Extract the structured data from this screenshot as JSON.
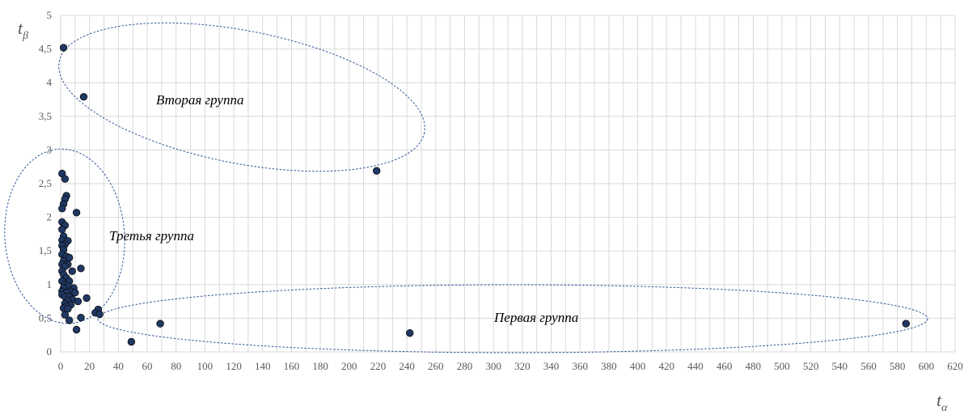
{
  "colors": {
    "marker": "#1f3864",
    "marker_edge": "#0d0d0d",
    "grid": "#d9d9d9",
    "ellipse": "#2f5597",
    "text": "#595959"
  },
  "chart_data": {
    "type": "scatter",
    "xlabel": {
      "main": "t",
      "sub": "α"
    },
    "ylabel": {
      "main": "t",
      "sub": "β"
    },
    "xlim": [
      0,
      620
    ],
    "ylim": [
      0,
      5
    ],
    "x_ticks": [
      0,
      10,
      20,
      30,
      40,
      50,
      60,
      70,
      80,
      90,
      100,
      110,
      120,
      130,
      140,
      150,
      160,
      170,
      180,
      190,
      200,
      210,
      220,
      230,
      240,
      250,
      260,
      270,
      280,
      290,
      300,
      310,
      320,
      330,
      340,
      350,
      360,
      370,
      380,
      390,
      400,
      410,
      420,
      430,
      440,
      450,
      460,
      470,
      480,
      490,
      500,
      510,
      520,
      530,
      540,
      550,
      560,
      570,
      580,
      590,
      600,
      610,
      620
    ],
    "x_tick_labels": [
      "0",
      "20",
      "40",
      "60",
      "80",
      "100",
      "120",
      "140",
      "160",
      "180",
      "200",
      "220",
      "240",
      "260",
      "280",
      "300",
      "320",
      "340",
      "360",
      "380",
      "400",
      "420",
      "440",
      "460",
      "480",
      "500",
      "520",
      "540",
      "560",
      "580",
      "600",
      "620"
    ],
    "y_ticks": [
      0,
      0.5,
      1,
      1.5,
      2,
      2.5,
      3,
      3.5,
      4,
      4.5,
      5
    ],
    "y_tick_labels": [
      "0",
      "0,5",
      "1",
      "1,5",
      "2",
      "2,5",
      "3",
      "3,5",
      "4",
      "4,5",
      "5"
    ],
    "grid": true,
    "legend": "none",
    "points": [
      {
        "x": 2,
        "y": 4.52
      },
      {
        "x": 16,
        "y": 3.79
      },
      {
        "x": 219,
        "y": 2.69
      },
      {
        "x": 1,
        "y": 2.65
      },
      {
        "x": 3,
        "y": 2.57
      },
      {
        "x": 4,
        "y": 2.32
      },
      {
        "x": 3,
        "y": 2.27
      },
      {
        "x": 2,
        "y": 2.2
      },
      {
        "x": 1,
        "y": 2.13
      },
      {
        "x": 11,
        "y": 2.07
      },
      {
        "x": 1,
        "y": 1.93
      },
      {
        "x": 3,
        "y": 1.88
      },
      {
        "x": 1,
        "y": 1.82
      },
      {
        "x": 2,
        "y": 1.72
      },
      {
        "x": 1,
        "y": 1.66
      },
      {
        "x": 5,
        "y": 1.65
      },
      {
        "x": 3,
        "y": 1.6
      },
      {
        "x": 1,
        "y": 1.58
      },
      {
        "x": 2,
        "y": 1.52
      },
      {
        "x": 1,
        "y": 1.45
      },
      {
        "x": 4,
        "y": 1.42
      },
      {
        "x": 6,
        "y": 1.4
      },
      {
        "x": 2,
        "y": 1.35
      },
      {
        "x": 1,
        "y": 1.3
      },
      {
        "x": 5,
        "y": 1.3
      },
      {
        "x": 3,
        "y": 1.27
      },
      {
        "x": 14,
        "y": 1.24
      },
      {
        "x": 1,
        "y": 1.2
      },
      {
        "x": 8,
        "y": 1.2
      },
      {
        "x": 2,
        "y": 1.15
      },
      {
        "x": 4,
        "y": 1.1
      },
      {
        "x": 1,
        "y": 1.05
      },
      {
        "x": 6,
        "y": 1.05
      },
      {
        "x": 3,
        "y": 1.0
      },
      {
        "x": 5,
        "y": 0.98
      },
      {
        "x": 2,
        "y": 0.95
      },
      {
        "x": 9,
        "y": 0.95
      },
      {
        "x": 1,
        "y": 0.9
      },
      {
        "x": 7,
        "y": 0.9
      },
      {
        "x": 4,
        "y": 0.88
      },
      {
        "x": 10,
        "y": 0.88
      },
      {
        "x": 1,
        "y": 0.85
      },
      {
        "x": 3,
        "y": 0.82
      },
      {
        "x": 6,
        "y": 0.82
      },
      {
        "x": 18,
        "y": 0.8
      },
      {
        "x": 8,
        "y": 0.78
      },
      {
        "x": 5,
        "y": 0.76
      },
      {
        "x": 12,
        "y": 0.75
      },
      {
        "x": 3,
        "y": 0.72
      },
      {
        "x": 7,
        "y": 0.7
      },
      {
        "x": 4,
        "y": 0.68
      },
      {
        "x": 2,
        "y": 0.65
      },
      {
        "x": 5,
        "y": 0.64
      },
      {
        "x": 26,
        "y": 0.63
      },
      {
        "x": 24,
        "y": 0.58
      },
      {
        "x": 27,
        "y": 0.56
      },
      {
        "x": 3,
        "y": 0.55
      },
      {
        "x": 14,
        "y": 0.51
      },
      {
        "x": 6,
        "y": 0.47
      },
      {
        "x": 69,
        "y": 0.42
      },
      {
        "x": 586,
        "y": 0.42
      },
      {
        "x": 11,
        "y": 0.33
      },
      {
        "x": 242,
        "y": 0.28
      },
      {
        "x": 49,
        "y": 0.15
      }
    ],
    "annotations": [
      {
        "text": "Вторая группа",
        "x": 165,
        "y": 3.72
      },
      {
        "text": "Третья группа",
        "x": 35,
        "y": 1.7
      },
      {
        "text": "Первая группа",
        "x": 342,
        "y": 0.47
      }
    ]
  }
}
